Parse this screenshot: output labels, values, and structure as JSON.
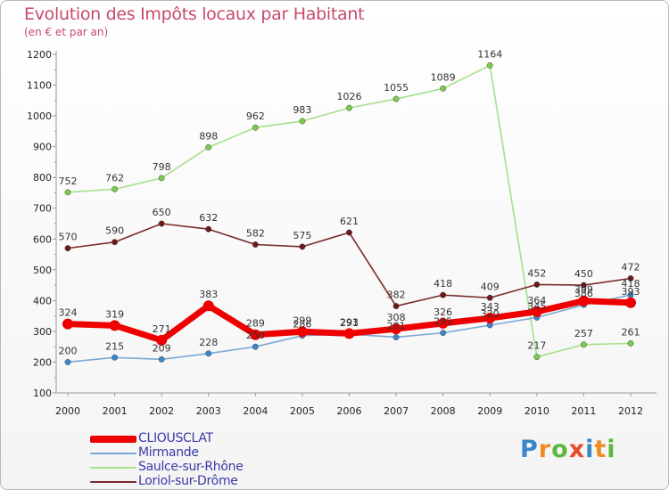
{
  "title": "Evolution des Impôts locaux par Habitant",
  "subtitle": "(en € et par an)",
  "logo": {
    "text": "Proxiti",
    "letters": [
      "P",
      "r",
      "o",
      "x",
      "i",
      "t",
      "i"
    ],
    "letter_colors": [
      "#3a86c8",
      "#f08c1e",
      "#5cb83c",
      "#e84a2a",
      "#3a86c8",
      "#f08c1e",
      "#5cb83c"
    ]
  },
  "chart_data": {
    "type": "line",
    "title": "Evolution des Impôts locaux par Habitant",
    "subtitle": "(en € et par an)",
    "xlabel": "",
    "ylabel": "",
    "x": [
      2000,
      2001,
      2002,
      2003,
      2004,
      2005,
      2006,
      2007,
      2008,
      2009,
      2010,
      2011,
      2012
    ],
    "x_tick_labels": [
      "2000",
      "2001",
      "2002",
      "2003",
      "2004",
      "2005",
      "2006",
      "2007",
      "2008",
      "2009",
      "2010",
      "2011",
      "2012"
    ],
    "ylim": [
      100,
      1200
    ],
    "y_ticks": [
      100,
      200,
      300,
      400,
      500,
      600,
      700,
      800,
      900,
      1000,
      1100,
      1200
    ],
    "y_tick_labels": [
      "100",
      "200",
      "300",
      "400",
      "500",
      "600",
      "700",
      "800",
      "900",
      "1000",
      "1100",
      "1200"
    ],
    "grid": false,
    "legend_position": "bottom-left",
    "series": [
      {
        "name": "CLIOUSCLAT",
        "color": "#ee0000",
        "marker_color": "#ee0000",
        "values": [
          324,
          319,
          271,
          383,
          289,
          299,
          293,
          308,
          326,
          343,
          364,
          399,
          393
        ],
        "labels": [
          "324",
          "319",
          "271",
          "383",
          "289",
          "299",
          "293",
          "308",
          "326",
          "343",
          "364",
          "399",
          "393"
        ]
      },
      {
        "name": "Mirmande",
        "color": "#7aa8d6",
        "marker_color": "#3a86c8",
        "values": [
          200,
          215,
          209,
          228,
          250,
          286,
          291,
          281,
          295,
          320,
          345,
          386,
          418
        ],
        "labels": [
          "200",
          "215",
          "209",
          "228",
          "250",
          "286",
          "291",
          "281",
          "295",
          "320",
          "345",
          "386",
          "418"
        ]
      },
      {
        "name": "Saulce-sur-Rhône",
        "color": "#a6e08a",
        "marker_color": "#7ccc4c",
        "values": [
          752,
          762,
          798,
          898,
          962,
          983,
          1026,
          1055,
          1089,
          1164,
          217,
          257,
          261
        ],
        "labels": [
          "752",
          "762",
          "798",
          "898",
          "962",
          "983",
          "1026",
          "1055",
          "1089",
          "1164",
          "217",
          "257",
          "261"
        ]
      },
      {
        "name": "Loriol-sur-Drôme",
        "color": "#7a2a2a",
        "marker_color": "#6a1a1a",
        "values": [
          570,
          590,
          650,
          632,
          582,
          575,
          621,
          382,
          418,
          409,
          452,
          450,
          472
        ],
        "labels": [
          "570",
          "590",
          "650",
          "632",
          "582",
          "575",
          "621",
          "382",
          "418",
          "409",
          "452",
          "450",
          "472"
        ]
      }
    ]
  }
}
